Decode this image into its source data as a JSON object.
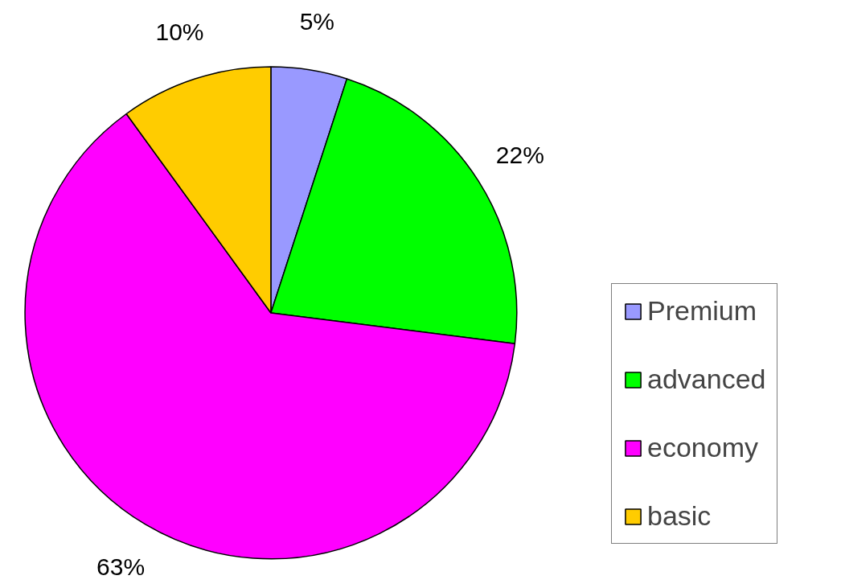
{
  "chart_data": {
    "type": "pie",
    "categories": [
      "Premium",
      "advanced",
      "economy",
      "basic"
    ],
    "values": [
      5,
      22,
      63,
      10
    ],
    "colors": [
      "#9999ff",
      "#00ff00",
      "#ff00ff",
      "#ffcc00"
    ],
    "value_labels": [
      "5%",
      "22%",
      "63%",
      "10%"
    ],
    "legend": "right"
  }
}
